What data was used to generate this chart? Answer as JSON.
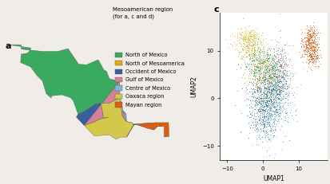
{
  "panel_a_label": "a",
  "panel_c_label": "c",
  "legend_title": "Mesoamerican region\n(for a, c and d)",
  "regions": [
    {
      "name": "North of Mexico",
      "color": "#3aaa60"
    },
    {
      "name": "North of Mesoamerica",
      "color": "#e6a817"
    },
    {
      "name": "Occident of Mexico",
      "color": "#3a5fa0"
    },
    {
      "name": "Gulf of Mexico",
      "color": "#d4819a"
    },
    {
      "name": "Centre of Mexico",
      "color": "#7ab8d4"
    },
    {
      "name": "Oaxaca region",
      "color": "#d4c84a"
    },
    {
      "name": "Mayan region",
      "color": "#d95f0e"
    }
  ],
  "umap_xlabel": "UMAP1",
  "umap_ylabel": "UMAP2",
  "umap_xlim": [
    -12,
    18
  ],
  "umap_ylim": [
    -13,
    18
  ],
  "umap_xticks": [
    -10,
    0,
    10
  ],
  "umap_yticks": [
    -10,
    0,
    10
  ],
  "background_color": "#f0ede8",
  "fig_width": 4.14,
  "fig_height": 2.31
}
